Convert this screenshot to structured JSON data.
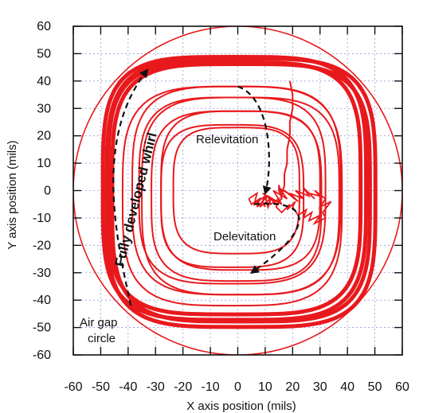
{
  "chart_data": {
    "type": "line",
    "title": "",
    "xlabel": "X axis position (mils)",
    "ylabel": "Y axis position (mils)",
    "xlim": [
      -60,
      60
    ],
    "ylim": [
      -60,
      60
    ],
    "x_ticks": [
      -60,
      -50,
      -40,
      -30,
      -20,
      -10,
      0,
      10,
      20,
      30,
      40,
      50,
      60
    ],
    "y_ticks": [
      -60,
      -50,
      -40,
      -30,
      -20,
      -10,
      0,
      10,
      20,
      30,
      40,
      50,
      60
    ],
    "x_tick_labels": [
      "-60",
      "-50",
      "-40",
      "-30",
      "-20",
      "-10",
      "0",
      "10",
      "20",
      "30",
      "40",
      "50",
      "60"
    ],
    "y_tick_labels": [
      "-60",
      "-50",
      "-40",
      "-30",
      "-20",
      "-10",
      "0",
      "10",
      "20",
      "30",
      "40",
      "50",
      "60"
    ],
    "grid": true,
    "line_color": "#e8191d",
    "air_gap_circle": {
      "cx": 0,
      "cy": 0,
      "r": 60
    },
    "whirl_orbits": {
      "outer_half_widths": [
        46,
        47,
        48,
        49
      ],
      "inner_half_widths": [
        40,
        38,
        36,
        34,
        31,
        29,
        26,
        23
      ],
      "corner_roundness": 4
    },
    "relevitation_path": {
      "x": [
        19,
        20,
        20,
        19,
        19,
        18,
        18,
        17,
        17,
        16,
        15,
        15,
        16,
        14,
        12,
        11,
        10,
        9,
        10
      ],
      "y": [
        40,
        35,
        30,
        25,
        20,
        15,
        10,
        6,
        2,
        -2,
        0,
        2,
        -3,
        -5,
        -3,
        -6,
        -2,
        -4,
        -6
      ]
    },
    "levitated_scribble": {
      "x": [
        4,
        7,
        6,
        10,
        8,
        12,
        9,
        14,
        11,
        16,
        13,
        18,
        15,
        20,
        17,
        22,
        19,
        24,
        21,
        26,
        24,
        28,
        26,
        30,
        28,
        32,
        30,
        34,
        31,
        32,
        28,
        30,
        26,
        27,
        24,
        25,
        22,
        20,
        21,
        18,
        19,
        16,
        14,
        15,
        12,
        11,
        9,
        7,
        8,
        5,
        4
      ],
      "y": [
        -3,
        -1,
        -5,
        -2,
        -6,
        -3,
        -1,
        -4,
        -2,
        -5,
        0,
        -3,
        1,
        -2,
        0,
        -4,
        -1,
        -3,
        0,
        -2,
        1,
        -3,
        -1,
        -2,
        0,
        -3,
        -6,
        -4,
        -8,
        -10,
        -12,
        -9,
        -11,
        -8,
        -10,
        -7,
        -9,
        -6,
        -4,
        -7,
        -5,
        -8,
        -6,
        -3,
        -5,
        -2,
        -4,
        -6,
        -3,
        -5,
        -3
      ]
    },
    "annotations": {
      "relevitation": "Relevitation",
      "delevitation": "Delevitation",
      "fully_developed_whirl": "Fully developed whirl",
      "air_gap_line1": "Air gap",
      "air_gap_line2": "circle"
    },
    "arrows": [
      {
        "label": "relevitation",
        "x": [
          0,
          12,
          13,
          10
        ],
        "y": [
          38,
          34,
          10,
          -1
        ]
      },
      {
        "label": "delevitation",
        "x": [
          6,
          28,
          28,
          5
        ],
        "y": [
          -5,
          -3,
          -14,
          -30
        ]
      },
      {
        "label": "whirl",
        "x": [
          -39,
          -45,
          -52,
          -33
        ],
        "y": [
          -42,
          -15,
          20,
          44
        ]
      }
    ]
  }
}
